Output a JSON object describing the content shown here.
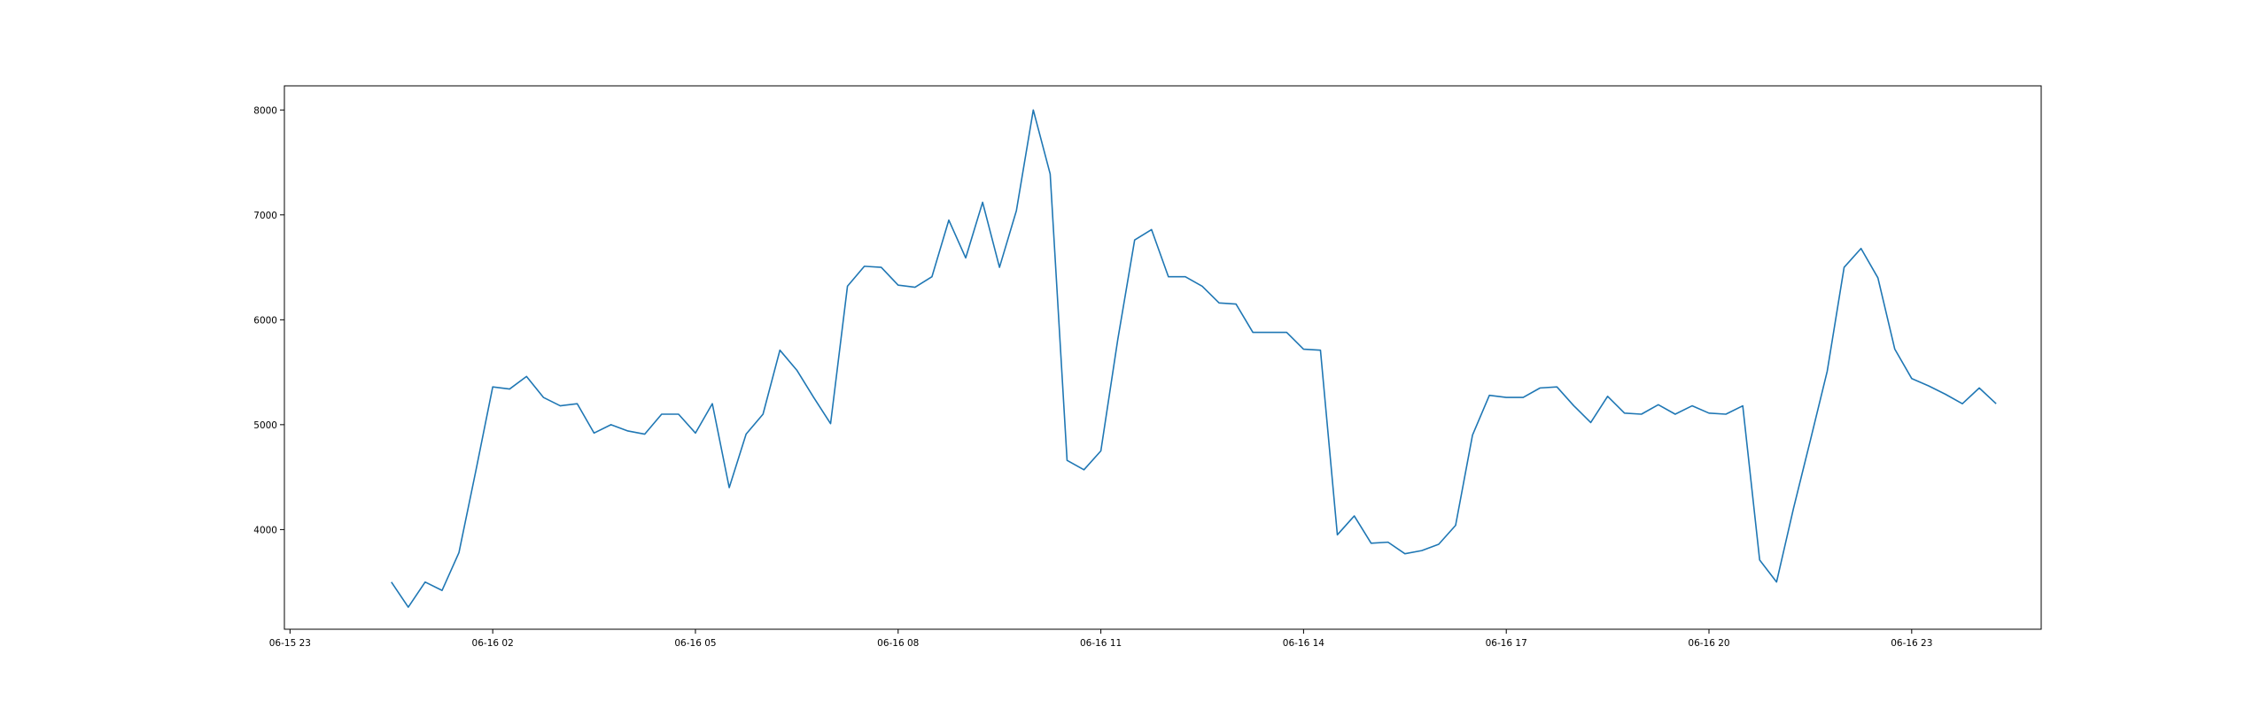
{
  "chart_data": {
    "type": "line",
    "title": "",
    "xlabel": "",
    "ylabel": "",
    "grid": false,
    "line_color": "#1f77b4",
    "x_start": "2024-06-16T00:30",
    "x_step_minutes": 15,
    "xlim": [
      "2024-06-15T22:55",
      "2024-06-17T00:55"
    ],
    "ylim": [
      3050,
      8230
    ],
    "x_ticks": [
      {
        "at": "2024-06-15T23:00",
        "label": "06-15 23"
      },
      {
        "at": "2024-06-16T02:00",
        "label": "06-16 02"
      },
      {
        "at": "2024-06-16T05:00",
        "label": "06-16 05"
      },
      {
        "at": "2024-06-16T08:00",
        "label": "06-16 08"
      },
      {
        "at": "2024-06-16T11:00",
        "label": "06-16 11"
      },
      {
        "at": "2024-06-16T14:00",
        "label": "06-16 14"
      },
      {
        "at": "2024-06-16T17:00",
        "label": "06-16 17"
      },
      {
        "at": "2024-06-16T20:00",
        "label": "06-16 20"
      },
      {
        "at": "2024-06-16T23:00",
        "label": "06-16 23"
      }
    ],
    "y_ticks": [
      {
        "value": 4000,
        "label": "4000"
      },
      {
        "value": 5000,
        "label": "5000"
      },
      {
        "value": 6000,
        "label": "6000"
      },
      {
        "value": 7000,
        "label": "7000"
      },
      {
        "value": 8000,
        "label": "8000"
      }
    ],
    "series": [
      {
        "values": [
          3500,
          3260,
          3500,
          3420,
          3780,
          4560,
          5360,
          5340,
          5460,
          5260,
          5180,
          5200,
          4920,
          5000,
          4940,
          4910,
          5100,
          5100,
          4920,
          5200,
          4400,
          4910,
          5100,
          5710,
          5520,
          5260,
          5010,
          6320,
          6510,
          6500,
          6330,
          6310,
          6410,
          6950,
          6590,
          7120,
          6500,
          7040,
          8000,
          7390,
          4660,
          4570,
          4750,
          5810,
          6760,
          6860,
          6410,
          6410,
          6320,
          6160,
          6150,
          5880,
          5880,
          5880,
          5720,
          5710,
          3950,
          4130,
          3870,
          3880,
          3770,
          3800,
          3860,
          4040,
          4900,
          5280,
          5260,
          5260,
          5350,
          5360,
          5180,
          5020,
          5270,
          5110,
          5100,
          5190,
          5100,
          5180,
          5110,
          5100,
          5180,
          3710,
          3500,
          4200,
          4850,
          5510,
          6500,
          6680,
          6400,
          5720,
          5440,
          5370,
          5290,
          5200,
          5350,
          5200
        ]
      }
    ]
  }
}
